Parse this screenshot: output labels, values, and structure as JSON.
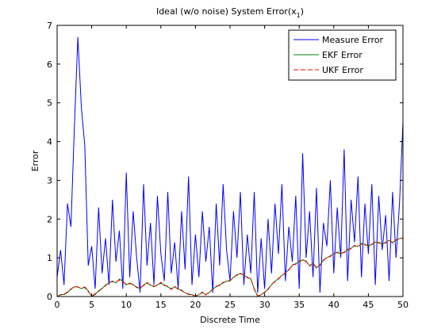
{
  "chart_data": {
    "type": "line",
    "title": [
      "Ideal (w/o noise) System Error(x",
      "1",
      ")"
    ],
    "xlabel": "Discrete Time",
    "ylabel": "Error",
    "xlim": [
      0,
      50
    ],
    "ylim": [
      0,
      7
    ],
    "xticks": [
      0,
      5,
      10,
      15,
      20,
      25,
      30,
      35,
      40,
      45,
      50
    ],
    "yticks": [
      0,
      1,
      2,
      3,
      4,
      5,
      6,
      7
    ],
    "legend": "northeast",
    "x": [
      0,
      0.5,
      1,
      1.5,
      2,
      2.5,
      3,
      3.5,
      4,
      4.5,
      5,
      5.5,
      6,
      6.5,
      7,
      7.5,
      8,
      8.5,
      9,
      9.5,
      10,
      10.5,
      11,
      11.5,
      12,
      12.5,
      13,
      13.5,
      14,
      14.5,
      15,
      15.5,
      16,
      16.5,
      17,
      17.5,
      18,
      18.5,
      19,
      19.5,
      20,
      20.5,
      21,
      21.5,
      22,
      22.5,
      23,
      23.5,
      24,
      24.5,
      25,
      25.5,
      26,
      26.5,
      27,
      27.5,
      28,
      28.5,
      29,
      29.5,
      30,
      30.5,
      31,
      31.5,
      32,
      32.5,
      33,
      33.5,
      34,
      34.5,
      35,
      35.5,
      36,
      36.5,
      37,
      37.5,
      38,
      38.5,
      39,
      39.5,
      40,
      40.5,
      41,
      41.5,
      42,
      42.5,
      43,
      43.5,
      44,
      44.5,
      45,
      45.5,
      46,
      46.5,
      47,
      47.5,
      48,
      48.5,
      49,
      49.5,
      50
    ],
    "series": [
      {
        "name": "Measure Error",
        "color": "#0000ff",
        "dash": "none",
        "values": [
          0.5,
          1.2,
          0.3,
          2.4,
          1.8,
          4.4,
          6.7,
          4.9,
          3.9,
          0.8,
          1.3,
          0.2,
          2.3,
          0.6,
          1.5,
          0.3,
          2.5,
          0.9,
          1.7,
          0.2,
          3.2,
          0.5,
          2.2,
          1.0,
          0.1,
          2.9,
          0.8,
          1.9,
          0.3,
          2.6,
          1.1,
          0.4,
          2.7,
          0.6,
          1.4,
          0.2,
          2.2,
          0.7,
          3.1,
          0.3,
          1.6,
          0.5,
          2.2,
          0.9,
          1.8,
          0.1,
          2.4,
          0.8,
          2.9,
          1.2,
          0.4,
          2.2,
          1.0,
          2.7,
          0.3,
          1.6,
          0.6,
          2.7,
          0.1,
          1.5,
          0.2,
          2.0,
          0.6,
          2.4,
          1.1,
          2.9,
          0.4,
          1.8,
          0.9,
          2.6,
          0.2,
          3.7,
          1.0,
          2.2,
          0.5,
          2.8,
          0.1,
          1.9,
          1.3,
          3.0,
          0.6,
          2.3,
          1.0,
          3.8,
          0.4,
          2.5,
          1.4,
          3.1,
          0.5,
          2.4,
          1.1,
          2.9,
          0.3,
          2.6,
          1.2,
          2.1,
          0.4,
          2.7,
          1.0,
          2.4,
          4.5
        ]
      },
      {
        "name": "EKF Error",
        "color": "#008000",
        "dash": "none",
        "values": [
          0,
          0.05,
          0.05,
          0.1,
          0.2,
          0.25,
          0.25,
          0.2,
          0.25,
          0.15,
          0,
          0.05,
          0.15,
          0.2,
          0.3,
          0.35,
          0.4,
          0.35,
          0.45,
          0.4,
          0.3,
          0.35,
          0.3,
          0.25,
          0.2,
          0.3,
          0.35,
          0.3,
          0.25,
          0.3,
          0.35,
          0.3,
          0.25,
          0.2,
          0.25,
          0.2,
          0.15,
          0.1,
          0.05,
          0.05,
          0,
          0.05,
          0.1,
          0.05,
          0.1,
          0.2,
          0.25,
          0.3,
          0.35,
          0.4,
          0.4,
          0.5,
          0.55,
          0.6,
          0.55,
          0.5,
          0.45,
          0.2,
          0,
          0.05,
          0.1,
          0.2,
          0.3,
          0.4,
          0.45,
          0.55,
          0.6,
          0.7,
          0.8,
          0.85,
          0.9,
          0.95,
          0.9,
          0.8,
          0.85,
          0.75,
          0.8,
          0.95,
          1.0,
          1.05,
          1.1,
          1.15,
          1.1,
          1.15,
          1.2,
          1.25,
          1.3,
          1.3,
          1.35,
          1.35,
          1.3,
          1.35,
          1.4,
          1.4,
          1.35,
          1.4,
          1.45,
          1.4,
          1.45,
          1.5,
          1.5
        ]
      },
      {
        "name": "UKF Error",
        "color": "#ff0000",
        "dash": "6,3",
        "values": [
          0,
          0.04,
          0.06,
          0.12,
          0.18,
          0.27,
          0.24,
          0.22,
          0.23,
          0.13,
          0.02,
          0.07,
          0.13,
          0.22,
          0.28,
          0.37,
          0.38,
          0.37,
          0.43,
          0.38,
          0.32,
          0.33,
          0.32,
          0.23,
          0.22,
          0.28,
          0.37,
          0.28,
          0.27,
          0.28,
          0.37,
          0.28,
          0.27,
          0.18,
          0.27,
          0.18,
          0.17,
          0.08,
          0.07,
          0.03,
          0.02,
          0.04,
          0.12,
          0.04,
          0.12,
          0.18,
          0.27,
          0.28,
          0.37,
          0.38,
          0.42,
          0.48,
          0.57,
          0.58,
          0.57,
          0.48,
          0.47,
          0.18,
          0.02,
          0.04,
          0.12,
          0.18,
          0.32,
          0.38,
          0.47,
          0.53,
          0.62,
          0.68,
          0.82,
          0.83,
          0.92,
          0.93,
          0.92,
          0.78,
          0.87,
          0.73,
          0.82,
          0.93,
          1.02,
          1.03,
          1.12,
          1.13,
          1.12,
          1.13,
          1.22,
          1.23,
          1.32,
          1.28,
          1.37,
          1.33,
          1.32,
          1.33,
          1.42,
          1.38,
          1.37,
          1.38,
          1.47,
          1.38,
          1.47,
          1.48,
          1.52
        ]
      }
    ]
  }
}
